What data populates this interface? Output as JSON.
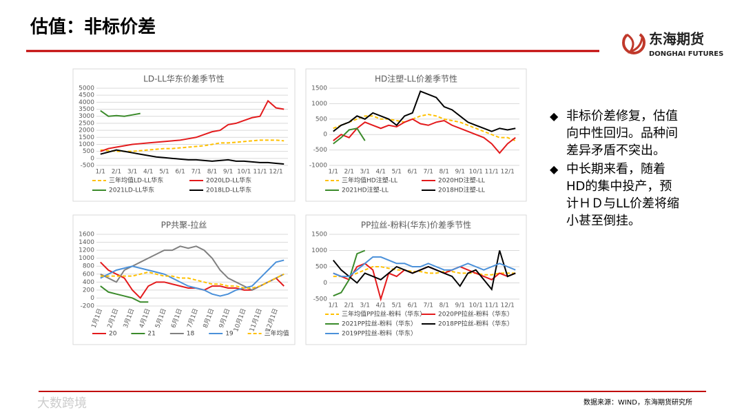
{
  "slide": {
    "title": "估值：非标价差",
    "logo_cn": "东海期货",
    "logo_en": "DONGHAI FUTURES",
    "bullets": [
      "非标价差修复，估值向中性回归。品种间差异矛盾不突出。",
      "中长期来看，随着HD的集中投产，预计ＨＤ与LL价差将缩小甚至倒挂。"
    ],
    "source": "数据来源：WIND，东海期货研究所",
    "watermark": "大数跨境"
  },
  "chart_data": [
    {
      "type": "line",
      "title": "LD-LL华东价差季节性",
      "categories": [
        "1/1",
        null,
        "2/1",
        null,
        "3/1",
        null,
        "4/1",
        null,
        "5/1",
        null,
        "6/1",
        null,
        "7/1",
        null,
        "8/1",
        null,
        "9/1",
        null,
        "10/1",
        null,
        "11/1",
        null,
        "12/1",
        null
      ],
      "ylim": [
        -500,
        5000
      ],
      "yticks": [
        -500,
        0,
        500,
        1000,
        1500,
        2000,
        2500,
        3000,
        3500,
        4000,
        4500,
        5000
      ],
      "grid": true,
      "series": [
        {
          "name": "三年均值LD-LL华东",
          "color": "#ffc000",
          "dashed": true,
          "values": [
            600,
            550,
            500,
            500,
            500,
            550,
            600,
            650,
            700,
            700,
            750,
            800,
            850,
            900,
            1000,
            1100,
            1100,
            1150,
            1200,
            1250,
            1300,
            1300,
            1300,
            1250
          ]
        },
        {
          "name": "2020LD-LL华东",
          "color": "#e31a1c",
          "values": [
            500,
            700,
            800,
            900,
            1000,
            1050,
            1100,
            1150,
            1200,
            1250,
            1300,
            1400,
            1500,
            1700,
            1900,
            2000,
            2400,
            2500,
            2700,
            2900,
            3000,
            4100,
            3600,
            3500
          ]
        },
        {
          "name": "2021LD-LL华东",
          "color": "#3a8a2a",
          "values": [
            3400,
            3000,
            3050,
            3000,
            3100,
            3200,
            null,
            null,
            null,
            null,
            null,
            null,
            null,
            null,
            null,
            null,
            null,
            null,
            null,
            null,
            null,
            null,
            null,
            null
          ]
        },
        {
          "name": "2018LD-LL华东",
          "color": "#000000",
          "values": [
            300,
            450,
            600,
            500,
            400,
            300,
            200,
            100,
            50,
            0,
            -50,
            -100,
            -100,
            -150,
            -200,
            -150,
            -100,
            -200,
            -200,
            -250,
            -300,
            -300,
            -350,
            -400
          ]
        }
      ]
    },
    {
      "type": "line",
      "title": "HD注塑-LL价差季节性",
      "categories": [
        "1/1",
        null,
        "2/1",
        null,
        "3/1",
        null,
        "4/1",
        null,
        "5/1",
        null,
        "6/1",
        null,
        "7/1",
        null,
        "8/1",
        null,
        "9/1",
        null,
        "10/1",
        null,
        "11/1",
        null,
        "12/1",
        null
      ],
      "ylim": [
        -1000,
        1500
      ],
      "yticks": [
        -1000,
        -500,
        0,
        500,
        1000,
        1500
      ],
      "grid": true,
      "series": [
        {
          "name": "三年均值HD注塑-LL",
          "color": "#ffc000",
          "dashed": true,
          "values": [
            200,
            300,
            400,
            500,
            600,
            600,
            500,
            500,
            450,
            400,
            500,
            600,
            650,
            600,
            500,
            450,
            400,
            300,
            200,
            100,
            0,
            -100,
            -100,
            -200
          ]
        },
        {
          "name": "2020HD注塑-LL",
          "color": "#e31a1c",
          "values": [
            -200,
            0,
            -100,
            200,
            400,
            300,
            200,
            300,
            250,
            400,
            500,
            350,
            300,
            400,
            450,
            300,
            200,
            100,
            0,
            -100,
            -300,
            -600,
            -300,
            -100
          ]
        },
        {
          "name": "2021HD注塑-LL",
          "color": "#3a8a2a",
          "values": [
            -300,
            -100,
            150,
            200,
            -200,
            null,
            null,
            null,
            null,
            null,
            null,
            null,
            null,
            null,
            null,
            null,
            null,
            null,
            null,
            null,
            null,
            null,
            null,
            null
          ]
        },
        {
          "name": "2018HD注塑-LL",
          "color": "#000000",
          "values": [
            100,
            300,
            400,
            600,
            500,
            700,
            600,
            500,
            300,
            600,
            700,
            1400,
            1300,
            1200,
            900,
            800,
            600,
            400,
            300,
            200,
            100,
            200,
            150,
            200
          ]
        }
      ]
    },
    {
      "type": "line",
      "title": "PP共聚-拉丝",
      "categories": [
        "1月1日",
        null,
        "2月1日",
        null,
        "3月1日",
        null,
        "4月1日",
        null,
        "5月1日",
        null,
        "6月1日",
        null,
        "7月1日",
        null,
        "8月1日",
        null,
        "9月1日",
        null,
        "10月1日",
        null,
        "11月1日",
        null,
        "12月1日",
        null
      ],
      "ylim": [
        -200,
        1600
      ],
      "yticks": [
        -200,
        0,
        200,
        400,
        600,
        800,
        1000,
        1200,
        1400,
        1600
      ],
      "grid": true,
      "series": [
        {
          "name": "20",
          "color": "#e31a1c",
          "values": [
            900,
            700,
            600,
            500,
            200,
            0,
            300,
            400,
            400,
            350,
            300,
            250,
            250,
            200,
            300,
            300,
            250,
            250,
            200,
            200,
            300,
            400,
            500,
            300
          ]
        },
        {
          "name": "21",
          "color": "#3a8a2a",
          "values": [
            300,
            150,
            100,
            50,
            0,
            -100,
            -100,
            null,
            null,
            null,
            null,
            null,
            null,
            null,
            null,
            null,
            null,
            null,
            null,
            null,
            null,
            null,
            null,
            null
          ]
        },
        {
          "name": "18",
          "color": "#808080",
          "values": [
            600,
            500,
            400,
            700,
            800,
            900,
            1000,
            1100,
            1200,
            1200,
            1300,
            1250,
            1300,
            1200,
            1000,
            700,
            500,
            400,
            300,
            200,
            300,
            400,
            500,
            600
          ]
        },
        {
          "name": "19",
          "color": "#4a90d9",
          "values": [
            500,
            600,
            700,
            750,
            800,
            750,
            700,
            650,
            600,
            500,
            400,
            300,
            250,
            200,
            100,
            50,
            100,
            200,
            250,
            300,
            500,
            700,
            900,
            950
          ]
        },
        {
          "name": "三年均值",
          "color": "#ffc000",
          "dashed": true,
          "values": [
            550,
            550,
            550,
            550,
            550,
            600,
            650,
            600,
            550,
            550,
            500,
            500,
            450,
            400,
            350,
            350,
            300,
            300,
            250,
            250,
            300,
            400,
            500,
            600
          ]
        }
      ]
    },
    {
      "type": "line",
      "title": "PP拉丝-粉料(华东)价差季节性",
      "categories": [
        "1/1",
        null,
        "2/1",
        null,
        "3/1",
        null,
        "4/1",
        null,
        "5/1",
        null,
        "6/1",
        null,
        "7/1",
        null,
        "8/1",
        null,
        "9/1",
        null,
        "10/1",
        null,
        "11/1",
        null,
        "12/1",
        null
      ],
      "ylim": [
        -500,
        1500
      ],
      "yticks": [
        -500,
        0,
        500,
        1000,
        1500
      ],
      "grid": true,
      "series": [
        {
          "name": "三年均值PP拉丝-粉料（华东）",
          "color": "#ffc000",
          "dashed": true,
          "values": [
            200,
            200,
            200,
            300,
            400,
            500,
            500,
            450,
            400,
            400,
            350,
            350,
            300,
            300,
            350,
            350,
            300,
            300,
            300,
            250,
            250,
            300,
            300,
            300
          ]
        },
        {
          "name": "2020PP拉丝-粉料（华东）",
          "color": "#e31a1c",
          "values": [
            300,
            200,
            100,
            500,
            600,
            400,
            -500,
            300,
            200,
            400,
            300,
            400,
            500,
            400,
            300,
            400,
            500,
            400,
            300,
            200,
            100,
            300,
            200,
            300
          ]
        },
        {
          "name": "2021PP拉丝-粉料（华东）",
          "color": "#3a8a2a",
          "values": [
            -400,
            -300,
            100,
            900,
            1000,
            null,
            null,
            null,
            null,
            null,
            null,
            null,
            null,
            null,
            null,
            null,
            null,
            null,
            null,
            null,
            null,
            null,
            null,
            null
          ]
        },
        {
          "name": "2018PP拉丝-粉料（华东）",
          "color": "#000000",
          "values": [
            700,
            400,
            200,
            0,
            300,
            200,
            100,
            300,
            500,
            400,
            300,
            400,
            500,
            400,
            300,
            200,
            -100,
            300,
            400,
            100,
            -200,
            1000,
            200,
            300
          ]
        },
        {
          "name": "2019PP拉丝-粉料（华东）",
          "color": "#4a90d9",
          "values": [
            300,
            200,
            200,
            400,
            600,
            800,
            800,
            700,
            600,
            600,
            500,
            500,
            600,
            500,
            400,
            400,
            500,
            600,
            500,
            400,
            500,
            600,
            500,
            400
          ]
        }
      ]
    }
  ]
}
